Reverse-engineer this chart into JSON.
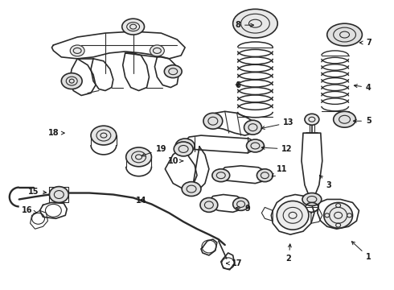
{
  "background_color": "#ffffff",
  "line_color": "#2a2a2a",
  "label_color": "#1a1a1a",
  "fig_width": 4.9,
  "fig_height": 3.6,
  "dpi": 100
}
